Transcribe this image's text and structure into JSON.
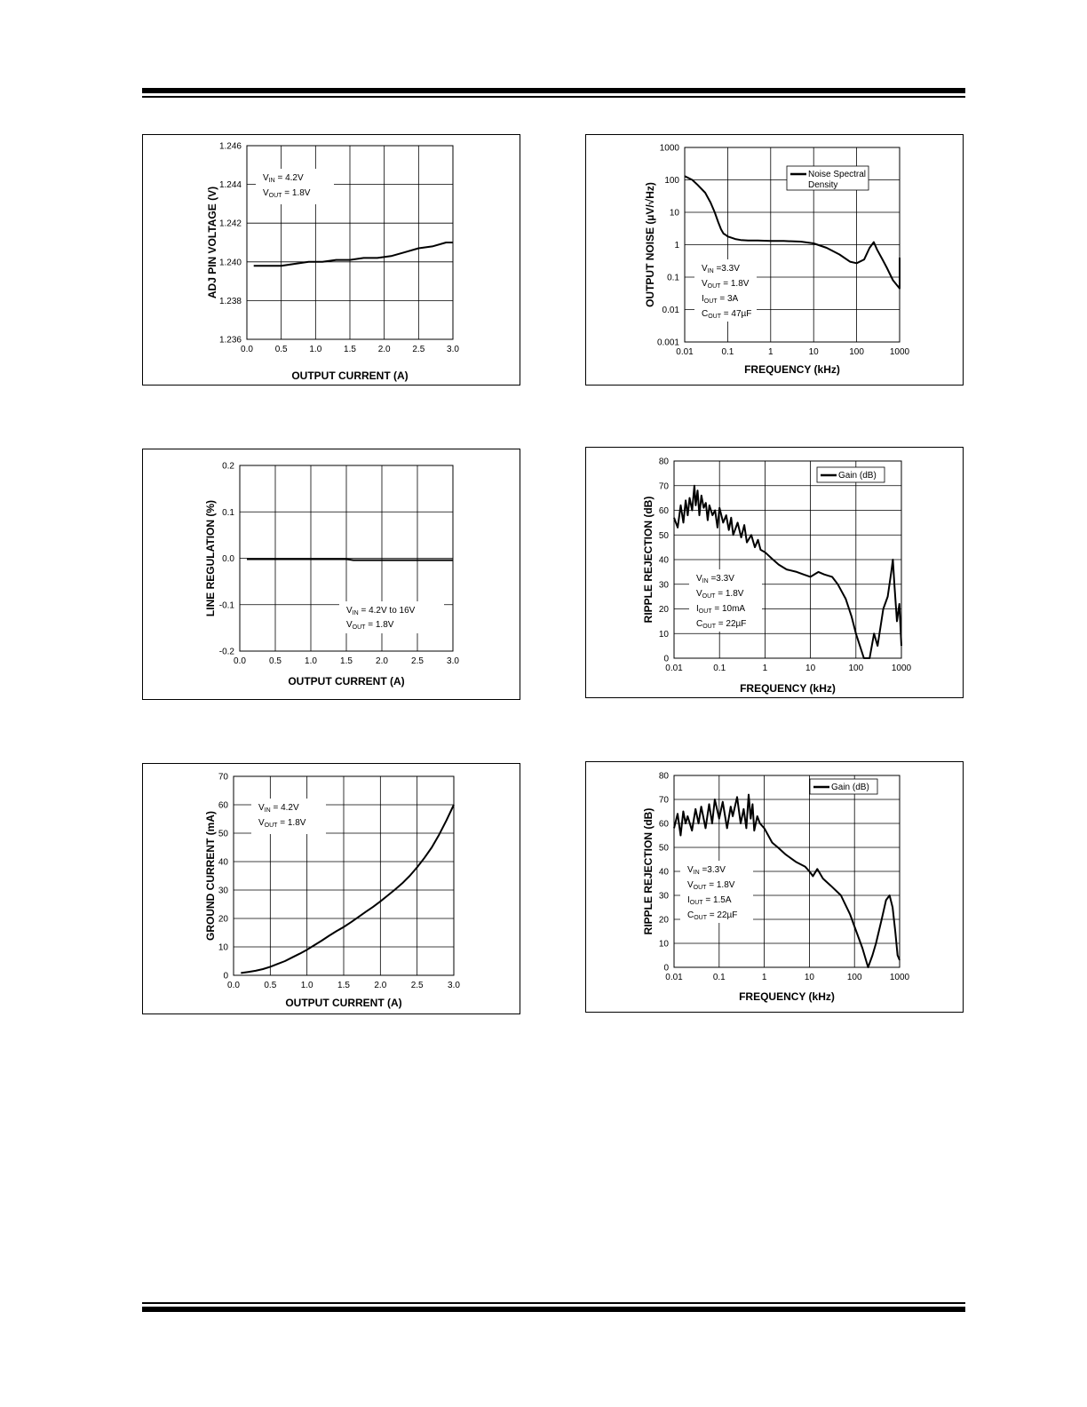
{
  "chart_data": [
    {
      "id": "adj",
      "type": "line",
      "xlabel": "OUTPUT CURRENT (A)",
      "ylabel": "ADJ PIN VOLTAGE (V)",
      "xlim": [
        0.0,
        3.0
      ],
      "ylim": [
        1.236,
        1.246
      ],
      "x_ticks": [
        "0.0",
        "0.5",
        "1.0",
        "1.5",
        "2.0",
        "2.5",
        "3.0"
      ],
      "y_ticks": [
        "1.236",
        "1.238",
        "1.240",
        "1.242",
        "1.244",
        "1.246"
      ],
      "grid": true,
      "annotations": [
        {
          "main": "V",
          "sub": "IN",
          "rest": " = 4.2V"
        },
        {
          "main": "V",
          "sub": "OUT",
          "rest": " = 1.8V"
        }
      ],
      "series": [
        {
          "x": [
            0.1,
            0.3,
            0.5,
            0.7,
            0.9,
            1.1,
            1.3,
            1.5,
            1.7,
            1.9,
            2.1,
            2.3,
            2.5,
            2.7,
            2.9,
            3.0
          ],
          "y": [
            1.2398,
            1.2398,
            1.2398,
            1.2399,
            1.24,
            1.24,
            1.2401,
            1.2401,
            1.2402,
            1.2402,
            1.2403,
            1.2405,
            1.2407,
            1.2408,
            1.241,
            1.241
          ]
        }
      ]
    },
    {
      "id": "line_reg",
      "type": "line",
      "xlabel": "OUTPUT CURRENT (A)",
      "ylabel": "LINE REGULATION (%)",
      "xlim": [
        0.0,
        3.0
      ],
      "ylim": [
        -0.2,
        0.2
      ],
      "x_ticks": [
        "0.0",
        "0.5",
        "1.0",
        "1.5",
        "2.0",
        "2.5",
        "3.0"
      ],
      "y_ticks": [
        "-0.2",
        "-0.1",
        "0.0",
        "0.1",
        "0.2"
      ],
      "grid": true,
      "annotations": [
        {
          "main": "V",
          "sub": "IN",
          "rest": " = 4.2V to 16V"
        },
        {
          "main": "V",
          "sub": "OUT",
          "rest": " = 1.8V"
        }
      ],
      "series": [
        {
          "x": [
            0.1,
            0.5,
            1.0,
            1.5,
            1.6,
            2.0,
            2.5,
            3.0
          ],
          "y": [
            -0.002,
            -0.002,
            -0.002,
            -0.002,
            -0.004,
            -0.004,
            -0.004,
            -0.004
          ]
        }
      ]
    },
    {
      "id": "gnd",
      "type": "line",
      "xlabel": "OUTPUT CURRENT (A)",
      "ylabel": "GROUND CURRENT (mA)",
      "xlim": [
        0.0,
        3.0
      ],
      "ylim": [
        0,
        70
      ],
      "x_ticks": [
        "0.0",
        "0.5",
        "1.0",
        "1.5",
        "2.0",
        "2.5",
        "3.0"
      ],
      "y_ticks": [
        "0",
        "10",
        "20",
        "30",
        "40",
        "50",
        "60",
        "70"
      ],
      "grid": true,
      "annotations": [
        {
          "main": "V",
          "sub": "IN",
          "rest": " = 4.2V"
        },
        {
          "main": "V",
          "sub": "OUT",
          "rest": " = 1.8V"
        }
      ],
      "series": [
        {
          "x": [
            0.1,
            0.2,
            0.3,
            0.4,
            0.5,
            0.6,
            0.7,
            0.8,
            0.9,
            1.0,
            1.1,
            1.2,
            1.3,
            1.4,
            1.5,
            1.6,
            1.7,
            1.8,
            1.9,
            2.0,
            2.1,
            2.2,
            2.3,
            2.4,
            2.5,
            2.6,
            2.7,
            2.8,
            2.9,
            3.0
          ],
          "y": [
            0.8,
            1.2,
            1.6,
            2.2,
            3.0,
            4.0,
            5.0,
            6.3,
            7.6,
            9.0,
            10.6,
            12.2,
            13.9,
            15.5,
            17.0,
            18.7,
            20.5,
            22.3,
            24.1,
            26.0,
            28.1,
            30.2,
            32.4,
            35.0,
            38.0,
            41.3,
            45.0,
            49.5,
            54.5,
            60.0
          ]
        }
      ]
    },
    {
      "id": "noise",
      "type": "line",
      "xlabel": "FREQUENCY (kHz)",
      "ylabel": "OUTPUT NOISE (µV/√Hz)",
      "xscale": "log",
      "yscale": "log",
      "xlim": [
        0.01,
        1000
      ],
      "ylim": [
        0.001,
        1000
      ],
      "x_ticks": [
        "0.01",
        "0.1",
        "1",
        "10",
        "100",
        "1000"
      ],
      "y_ticks": [
        "0.001",
        "0.01",
        "0.1",
        "1",
        "10",
        "100",
        "1000"
      ],
      "grid": true,
      "legend": {
        "label": "Noise Spectral Density",
        "line1": "Noise Spectral",
        "line2": "Density",
        "position": "top-right"
      },
      "annotations": [
        {
          "main": "V",
          "sub": "IN",
          "rest": " =3.3V"
        },
        {
          "main": "V",
          "sub": "OUT",
          "rest": " = 1.8V"
        },
        {
          "main": "I",
          "sub": "OUT",
          "rest": " = 3A"
        },
        {
          "main": "C",
          "sub": "OUT",
          "rest": " = 47µF"
        }
      ],
      "series": [
        {
          "name": "Noise Spectral Density",
          "x": [
            0.01,
            0.015,
            0.02,
            0.03,
            0.04,
            0.05,
            0.06,
            0.07,
            0.08,
            0.09,
            0.1,
            0.15,
            0.2,
            0.3,
            0.5,
            1,
            2,
            5,
            10,
            20,
            40,
            70,
            100,
            150,
            200,
            250,
            300,
            400,
            500,
            700,
            1000,
            1000
          ],
          "y": [
            130,
            100,
            70,
            40,
            20,
            10,
            5,
            3,
            2.2,
            2.0,
            1.8,
            1.5,
            1.4,
            1.35,
            1.35,
            1.3,
            1.3,
            1.25,
            1.1,
            0.8,
            0.5,
            0.3,
            0.27,
            0.35,
            0.8,
            1.2,
            0.7,
            0.35,
            0.2,
            0.08,
            0.045,
            0.4
          ]
        }
      ]
    },
    {
      "id": "psrr_10ma",
      "type": "line",
      "xlabel": "FREQUENCY (kHz)",
      "ylabel": "RIPPLE REJECTION (dB)",
      "xscale": "log",
      "xlim": [
        0.01,
        1000
      ],
      "ylim": [
        0,
        80
      ],
      "x_ticks": [
        "0.01",
        "0.1",
        "1",
        "10",
        "100",
        "1000"
      ],
      "y_ticks": [
        "0",
        "10",
        "20",
        "30",
        "40",
        "50",
        "60",
        "70",
        "80"
      ],
      "grid": true,
      "legend": {
        "label": "Gain (dB)",
        "position": "top-right"
      },
      "annotations": [
        {
          "main": "V",
          "sub": "IN",
          "rest": " =3.3V"
        },
        {
          "main": "V",
          "sub": "OUT",
          "rest": " = 1.8V"
        },
        {
          "main": "I",
          "sub": "OUT",
          "rest": " = 10mA"
        },
        {
          "main": "C",
          "sub": "OUT",
          "rest": " = 22µF"
        }
      ],
      "series": [
        {
          "name": "Gain (dB)",
          "x": [
            0.01,
            0.012,
            0.014,
            0.016,
            0.018,
            0.02,
            0.022,
            0.025,
            0.028,
            0.03,
            0.033,
            0.036,
            0.04,
            0.045,
            0.05,
            0.055,
            0.06,
            0.07,
            0.08,
            0.09,
            0.1,
            0.12,
            0.14,
            0.16,
            0.18,
            0.2,
            0.25,
            0.3,
            0.35,
            0.4,
            0.5,
            0.6,
            0.7,
            0.8,
            1,
            1.5,
            2,
            3,
            5,
            7,
            10,
            15,
            20,
            30,
            40,
            60,
            80,
            100,
            150,
            200,
            250,
            300,
            400,
            500,
            600,
            650,
            700,
            800,
            900,
            1000
          ],
          "y": [
            57,
            53,
            62,
            55,
            64,
            58,
            65,
            60,
            70,
            62,
            68,
            58,
            66,
            61,
            63,
            56,
            62,
            58,
            60,
            53,
            61,
            55,
            58,
            52,
            57,
            50,
            55,
            49,
            54,
            47,
            50,
            45,
            48,
            44,
            43,
            40,
            38,
            36,
            35,
            34,
            33,
            35,
            34,
            33,
            30,
            24,
            17,
            10,
            0,
            0,
            10,
            5,
            20,
            25,
            35,
            40,
            30,
            15,
            22,
            5
          ]
        }
      ]
    },
    {
      "id": "psrr_1_5a",
      "type": "line",
      "xlabel": "FREQUENCY (kHz)",
      "ylabel": "RIPPLE REJECTION (dB)",
      "xscale": "log",
      "xlim": [
        0.01,
        1000
      ],
      "ylim": [
        0,
        80
      ],
      "x_ticks": [
        "0.01",
        "0.1",
        "1",
        "10",
        "100",
        "1000"
      ],
      "y_ticks": [
        "0",
        "10",
        "20",
        "30",
        "40",
        "50",
        "60",
        "70",
        "80"
      ],
      "grid": true,
      "legend": {
        "label": "Gain (dB)",
        "position": "top-right"
      },
      "annotations": [
        {
          "main": "V",
          "sub": "IN",
          "rest": " =3.3V"
        },
        {
          "main": "V",
          "sub": "OUT",
          "rest": " = 1.8V"
        },
        {
          "main": "I",
          "sub": "OUT",
          "rest": " = 1.5A"
        },
        {
          "main": "C",
          "sub": "OUT",
          "rest": " = 22µF"
        }
      ],
      "series": [
        {
          "name": "Gain (dB)",
          "x": [
            0.01,
            0.012,
            0.014,
            0.016,
            0.018,
            0.02,
            0.025,
            0.03,
            0.035,
            0.04,
            0.05,
            0.06,
            0.07,
            0.08,
            0.1,
            0.12,
            0.15,
            0.18,
            0.2,
            0.25,
            0.3,
            0.35,
            0.4,
            0.45,
            0.5,
            0.55,
            0.6,
            0.7,
            0.8,
            1,
            1.5,
            2,
            3,
            5,
            8,
            10,
            12,
            15,
            20,
            30,
            50,
            80,
            100,
            150,
            200,
            250,
            300,
            400,
            500,
            600,
            700,
            800,
            900,
            1000
          ],
          "y": [
            58,
            64,
            55,
            65,
            60,
            63,
            57,
            66,
            60,
            67,
            58,
            68,
            60,
            70,
            62,
            69,
            58,
            67,
            63,
            71,
            60,
            66,
            58,
            72,
            62,
            68,
            57,
            63,
            60,
            58,
            52,
            50,
            47,
            44,
            42,
            40,
            38,
            41,
            37,
            34,
            30,
            22,
            17,
            8,
            0,
            5,
            10,
            20,
            28,
            30,
            25,
            15,
            5,
            3
          ]
        }
      ]
    }
  ]
}
